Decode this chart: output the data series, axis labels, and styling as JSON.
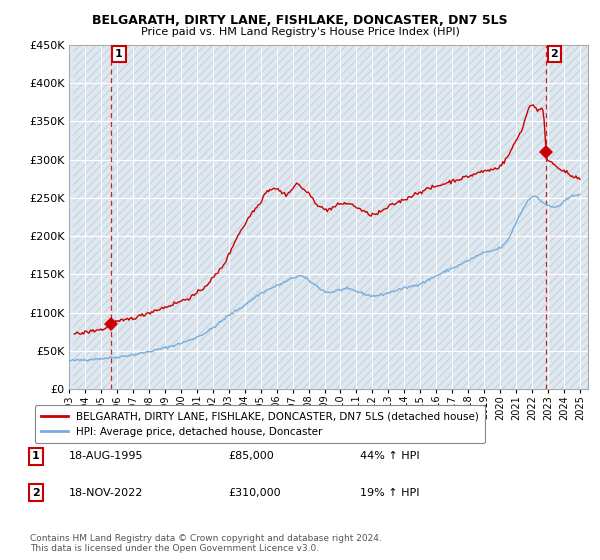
{
  "title": "BELGARATH, DIRTY LANE, FISHLAKE, DONCASTER, DN7 5LS",
  "subtitle": "Price paid vs. HM Land Registry's House Price Index (HPI)",
  "ylim": [
    0,
    450000
  ],
  "yticks": [
    0,
    50000,
    100000,
    150000,
    200000,
    250000,
    300000,
    350000,
    400000,
    450000
  ],
  "ytick_labels": [
    "£0",
    "£50K",
    "£100K",
    "£150K",
    "£200K",
    "£250K",
    "£300K",
    "£350K",
    "£400K",
    "£450K"
  ],
  "xlim_start": 1993.25,
  "xlim_end": 2025.5,
  "xtick_years": [
    1993,
    1994,
    1995,
    1996,
    1997,
    1998,
    1999,
    2000,
    2001,
    2002,
    2003,
    2004,
    2005,
    2006,
    2007,
    2008,
    2009,
    2010,
    2011,
    2012,
    2013,
    2014,
    2015,
    2016,
    2017,
    2018,
    2019,
    2020,
    2021,
    2022,
    2023,
    2024,
    2025
  ],
  "property_color": "#cc0000",
  "hpi_color": "#7aacdc",
  "plot_bg_color": "#dce9f5",
  "legend_label_property": "BELGARATH, DIRTY LANE, FISHLAKE, DONCASTER, DN7 5LS (detached house)",
  "legend_label_hpi": "HPI: Average price, detached house, Doncaster",
  "transaction1_x": 1995.63,
  "transaction1_y": 85000,
  "transaction1_label": "1",
  "transaction2_x": 2022.88,
  "transaction2_y": 310000,
  "transaction2_label": "2",
  "vline1_x": 1995.63,
  "vline2_x": 2022.88,
  "footnote": "Contains HM Land Registry data © Crown copyright and database right 2024.\nThis data is licensed under the Open Government Licence v3.0.",
  "table_rows": [
    {
      "num": "1",
      "date": "18-AUG-1995",
      "price": "£85,000",
      "hpi": "44% ↑ HPI"
    },
    {
      "num": "2",
      "date": "18-NOV-2022",
      "price": "£310,000",
      "hpi": "19% ↑ HPI"
    }
  ]
}
